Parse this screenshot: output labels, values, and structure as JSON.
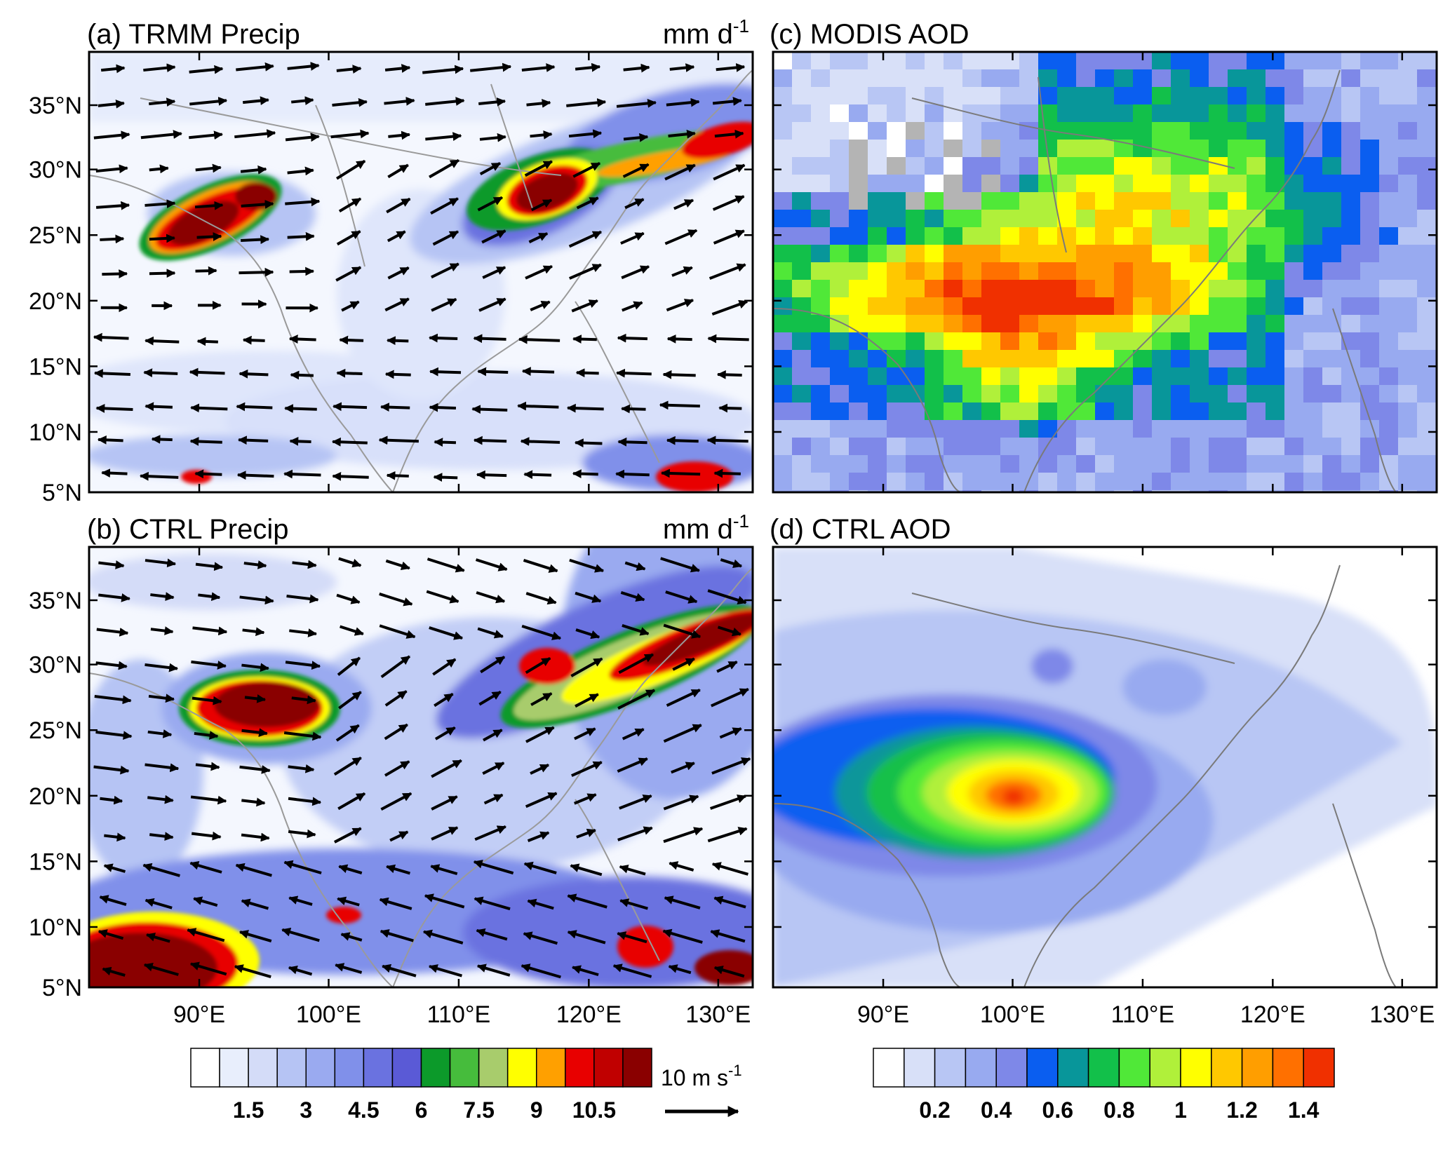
{
  "figure": {
    "panels": [
      {
        "id": "a",
        "title": "(a) TRMM  Precip",
        "units": "mm d",
        "units_exp": "-1",
        "field": "precip",
        "has_vectors": true,
        "vector_set": "obs"
      },
      {
        "id": "b",
        "title": "(b) CTRL  Precip",
        "units": "mm d",
        "units_exp": "-1",
        "field": "precip",
        "has_vectors": true,
        "vector_set": "model"
      },
      {
        "id": "c",
        "title": "(c) MODIS AOD",
        "units": "",
        "units_exp": "",
        "field": "aod_obs",
        "has_vectors": false
      },
      {
        "id": "d",
        "title": "(d) CTRL AOD",
        "units": "",
        "units_exp": "",
        "field": "aod_model",
        "has_vectors": false
      }
    ],
    "lat_labels": [
      "35°N",
      "30°N",
      "25°N",
      "20°N",
      "15°N",
      "10°N",
      "5°N"
    ],
    "lon_labels": [
      "90°E",
      "100°E",
      "110°E",
      "120°E",
      "130°E"
    ],
    "precip_colorbar": {
      "colors": [
        "#ffffff",
        "#e8eefc",
        "#d4dcf8",
        "#b6c4f4",
        "#9aaaf0",
        "#8090ea",
        "#6a72e0",
        "#5a5ad6",
        "#0c9a2a",
        "#46bc3c",
        "#a8cc6c",
        "#ffff00",
        "#ffa000",
        "#e80000",
        "#c00000",
        "#8a0000"
      ],
      "labels": [
        "1.5",
        "3",
        "4.5",
        "6",
        "7.5",
        "9",
        "10.5"
      ],
      "ref_vector_label": "10 m s",
      "ref_vector_exp": "-1"
    },
    "aod_colorbar": {
      "colors": [
        "#ffffff",
        "#d8e0f8",
        "#b8c6f4",
        "#98aaf0",
        "#7e88e8",
        "#0a5ef0",
        "#08969a",
        "#12c04a",
        "#50e838",
        "#b0f03a",
        "#ffff00",
        "#ffc800",
        "#ff9e00",
        "#ff7000",
        "#f03000"
      ],
      "labels": [
        "0.2",
        "0.4",
        "0.6",
        "0.8",
        "1",
        "1.2",
        "1.4"
      ]
    }
  }
}
